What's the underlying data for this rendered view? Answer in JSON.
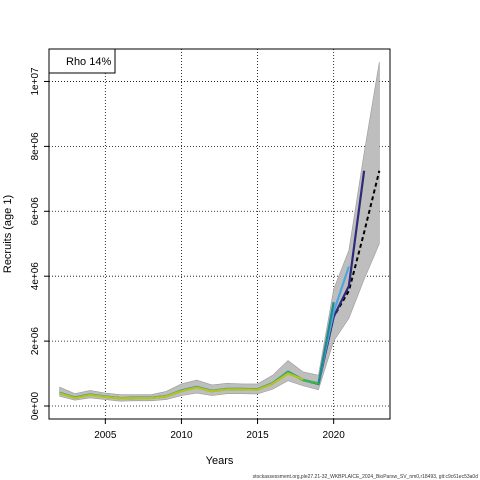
{
  "chart_data": {
    "type": "line",
    "xlabel": "Years",
    "ylabel": "Recruits (age 1)",
    "xlim": [
      2001.3,
      2023.7
    ],
    "ylim": [
      -400000,
      11000000
    ],
    "x_ticks": [
      2005,
      2010,
      2015,
      2020
    ],
    "x_tick_labels": [
      "2005",
      "2010",
      "2015",
      "2020"
    ],
    "y_ticks": [
      0,
      2000000,
      4000000,
      6000000,
      8000000,
      10000000
    ],
    "y_tick_labels": [
      "0e+00",
      "2e+06",
      "4e+06",
      "6e+06",
      "8e+06",
      "1e+07"
    ],
    "grid": true,
    "legend": {
      "placement": "top-left",
      "entries": [
        "Rho 14%"
      ]
    },
    "footer": "stockassessment.org,ple27.21-32_WKBPLAICE_2024_BioParsw_SV_nm0,r18493, git:c9c61ec53a0d",
    "series": [
      {
        "color": "#bebebe",
        "role": "confidence-band",
        "x": [
          2002,
          2003,
          2004,
          2005,
          2006,
          2007,
          2008,
          2009,
          2010,
          2011,
          2012,
          2013,
          2014,
          2015,
          2016,
          2017,
          2018,
          2019,
          2020,
          2021,
          2022,
          2023
        ],
        "lower": [
          300000,
          180000,
          250000,
          200000,
          150000,
          160000,
          160000,
          200000,
          320000,
          400000,
          320000,
          380000,
          380000,
          370000,
          520000,
          780000,
          620000,
          500000,
          2000000,
          2700000,
          3900000,
          5000000
        ],
        "upper": [
          580000,
          380000,
          480000,
          400000,
          350000,
          350000,
          350000,
          450000,
          680000,
          800000,
          650000,
          700000,
          680000,
          680000,
          950000,
          1400000,
          1050000,
          950000,
          3600000,
          4800000,
          7800000,
          10600000
        ]
      },
      {
        "color": "#000000",
        "role": "final-estimate",
        "dashed": true,
        "x": [
          2002,
          2003,
          2004,
          2005,
          2006,
          2007,
          2008,
          2009,
          2010,
          2011,
          2012,
          2013,
          2014,
          2015,
          2016,
          2017,
          2018,
          2019,
          2020,
          2021,
          2022,
          2023
        ],
        "values": [
          400000,
          260000,
          350000,
          290000,
          240000,
          250000,
          250000,
          300000,
          470000,
          580000,
          460000,
          520000,
          520000,
          510000,
          700000,
          1050000,
          800000,
          680000,
          2750000,
          3550000,
          5350000,
          7250000
        ]
      },
      {
        "color": "#2e2a7a",
        "role": "peel",
        "x": [
          2002,
          2003,
          2004,
          2005,
          2006,
          2007,
          2008,
          2009,
          2010,
          2011,
          2012,
          2013,
          2014,
          2015,
          2016,
          2017,
          2018,
          2019,
          2020,
          2021,
          2022
        ],
        "values": [
          400000,
          260000,
          350000,
          290000,
          240000,
          250000,
          250000,
          300000,
          470000,
          580000,
          460000,
          520000,
          520000,
          510000,
          700000,
          1050000,
          800000,
          680000,
          2750000,
          3700000,
          7250000
        ]
      },
      {
        "color": "#4da6e0",
        "role": "peel",
        "x": [
          2002,
          2003,
          2004,
          2005,
          2006,
          2007,
          2008,
          2009,
          2010,
          2011,
          2012,
          2013,
          2014,
          2015,
          2016,
          2017,
          2018,
          2019,
          2020,
          2021
        ],
        "values": [
          410000,
          265000,
          355000,
          295000,
          245000,
          255000,
          255000,
          305000,
          480000,
          590000,
          470000,
          530000,
          530000,
          520000,
          710000,
          1060000,
          810000,
          690000,
          2900000,
          4300000
        ]
      },
      {
        "color": "#1f8a8a",
        "role": "peel",
        "x": [
          2002,
          2003,
          2004,
          2005,
          2006,
          2007,
          2008,
          2009,
          2010,
          2011,
          2012,
          2013,
          2014,
          2015,
          2016,
          2017,
          2018,
          2019,
          2020
        ],
        "values": [
          405000,
          262000,
          352000,
          292000,
          242000,
          252000,
          252000,
          302000,
          475000,
          585000,
          465000,
          525000,
          525000,
          515000,
          705000,
          1055000,
          805000,
          685000,
          3200000
        ]
      },
      {
        "color": "#3cb54a",
        "role": "peel",
        "x": [
          2002,
          2003,
          2004,
          2005,
          2006,
          2007,
          2008,
          2009,
          2010,
          2011,
          2012,
          2013,
          2014,
          2015,
          2016,
          2017,
          2018,
          2019
        ],
        "values": [
          395000,
          255000,
          345000,
          285000,
          238000,
          248000,
          248000,
          298000,
          465000,
          575000,
          458000,
          518000,
          518000,
          508000,
          695000,
          1040000,
          795000,
          700000
        ]
      },
      {
        "color": "#b5c21f",
        "role": "peel",
        "x": [
          2002,
          2003,
          2004,
          2005,
          2006,
          2007,
          2008,
          2009,
          2010,
          2011,
          2012,
          2013,
          2014,
          2015,
          2016,
          2017,
          2018
        ],
        "values": [
          390000,
          250000,
          340000,
          282000,
          235000,
          245000,
          245000,
          295000,
          460000,
          570000,
          455000,
          515000,
          515000,
          505000,
          690000,
          1000000,
          820000
        ]
      }
    ]
  }
}
